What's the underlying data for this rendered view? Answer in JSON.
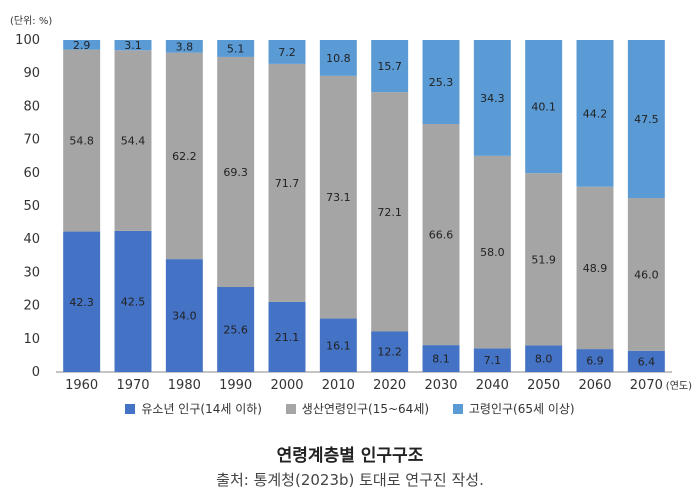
{
  "chart_data": {
    "type": "bar",
    "stacked": true,
    "categories": [
      "1960",
      "1970",
      "1980",
      "1990",
      "2000",
      "2010",
      "2020",
      "2030",
      "2040",
      "2050",
      "2060",
      "2070"
    ],
    "series": [
      {
        "name": "유소년 인구(14세 이하)",
        "color": "#4472c4",
        "values": [
          42.3,
          42.5,
          34.0,
          25.6,
          21.1,
          16.1,
          12.2,
          8.1,
          7.1,
          8.0,
          6.9,
          6.4
        ]
      },
      {
        "name": "생산연령인구(15~64세)",
        "color": "#a5a5a5",
        "values": [
          54.8,
          54.4,
          62.2,
          69.3,
          71.7,
          73.1,
          72.1,
          66.6,
          58.0,
          51.9,
          48.9,
          46.0
        ]
      },
      {
        "name": "고령인구(65세 이상)",
        "color": "#5b9bd5",
        "values": [
          2.9,
          3.1,
          3.8,
          5.1,
          7.2,
          10.8,
          15.7,
          25.3,
          34.3,
          40.1,
          44.2,
          47.5
        ]
      }
    ],
    "ylim": [
      0,
      100
    ],
    "yticks": [
      0,
      10,
      20,
      30,
      40,
      50,
      60,
      70,
      80,
      90,
      100
    ],
    "y_unit_label": "(단위: %)",
    "x_unit_label": "(연도)",
    "grid": false,
    "legend_position": "bottom",
    "title": "연령계층별 인구구조",
    "source": "출처: 통계청(2023b) 토대로 연구진 작성."
  }
}
